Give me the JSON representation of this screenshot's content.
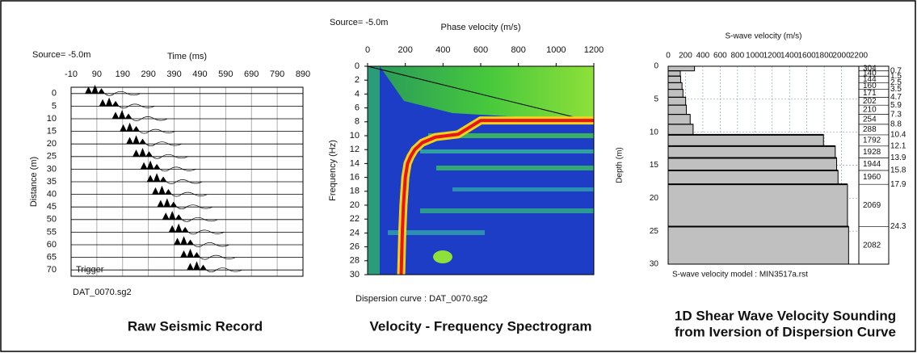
{
  "chart_data": [
    {
      "type": "seismic",
      "source": "Source= -5.0m",
      "x_label": "Time (ms)",
      "y_label": "Distance (m)",
      "xlim": [
        -10,
        890
      ],
      "xticks": [
        -10,
        90,
        190,
        290,
        390,
        490,
        590,
        690,
        790,
        890
      ],
      "ylim": [
        -2.5,
        72.5
      ],
      "yticks": [
        0,
        5,
        10,
        15,
        20,
        25,
        30,
        35,
        40,
        45,
        50,
        55,
        60,
        65,
        70
      ],
      "distance": [
        0,
        5,
        10,
        15,
        20,
        25,
        30,
        35,
        40,
        45,
        50,
        55,
        60,
        65,
        70
      ],
      "first_arrival": [
        45,
        100,
        150,
        180,
        205,
        230,
        260,
        285,
        305,
        325,
        345,
        370,
        390,
        415,
        440
      ],
      "annotation": "Trigger",
      "file": "DAT_0070.sg2",
      "caption": "Raw Seismic Record",
      "color": "#000000",
      "grid": true
    },
    {
      "type": "spectrogram",
      "source": "Source= -5.0m",
      "x_label": "Phase velocity (m/s)",
      "y_label": "Frequency (Hz)",
      "xlim": [
        0,
        1200
      ],
      "xticks": [
        0,
        200,
        400,
        600,
        800,
        1000,
        1200
      ],
      "ylim": [
        0,
        30
      ],
      "yticks": [
        0,
        2,
        4,
        6,
        8,
        10,
        12,
        14,
        16,
        18,
        20,
        22,
        24,
        26,
        28,
        30
      ],
      "dispersion_curve": {
        "frequency": [
          7.8,
          7.8,
          9.8,
          10.2,
          11,
          12,
          13,
          14,
          16,
          20,
          24,
          28,
          30
        ],
        "velocity": [
          1200,
          600,
          480,
          360,
          290,
          250,
          228,
          212,
          200,
          190,
          184,
          180,
          178
        ]
      },
      "file": "Dispersion curve : DAT_0070.sg2",
      "caption": "Velocity - Frequency Spectrogram",
      "color": "#e8141c"
    },
    {
      "type": "step",
      "x_label": "S-wave velocity (m/s)",
      "y_label": "Depth (m)",
      "xlim": [
        0,
        2200
      ],
      "xticks": [
        0,
        200,
        400,
        600,
        800,
        1000,
        1200,
        1400,
        1600,
        1800,
        2000,
        2200
      ],
      "ylim": [
        0,
        30
      ],
      "yticks": [
        0,
        5,
        10,
        15,
        20,
        25,
        30
      ],
      "velocity": [
        304,
        140,
        144,
        160,
        171,
        202,
        210,
        254,
        288,
        1792,
        1928,
        1944,
        1960,
        2069,
        2082
      ],
      "depth": [
        0.7,
        1.5,
        2.5,
        3.5,
        4.7,
        5.9,
        7.3,
        8.8,
        10.4,
        12.1,
        13.9,
        15.8,
        17.9,
        24.3
      ],
      "file": "S-wave velocity model : MIN3517a.rst",
      "caption": [
        "1D Shear Wave Velocity Sounding",
        "from Iversion of Dispersion Curve"
      ],
      "color": "#c0c0c0",
      "grid": true
    }
  ]
}
